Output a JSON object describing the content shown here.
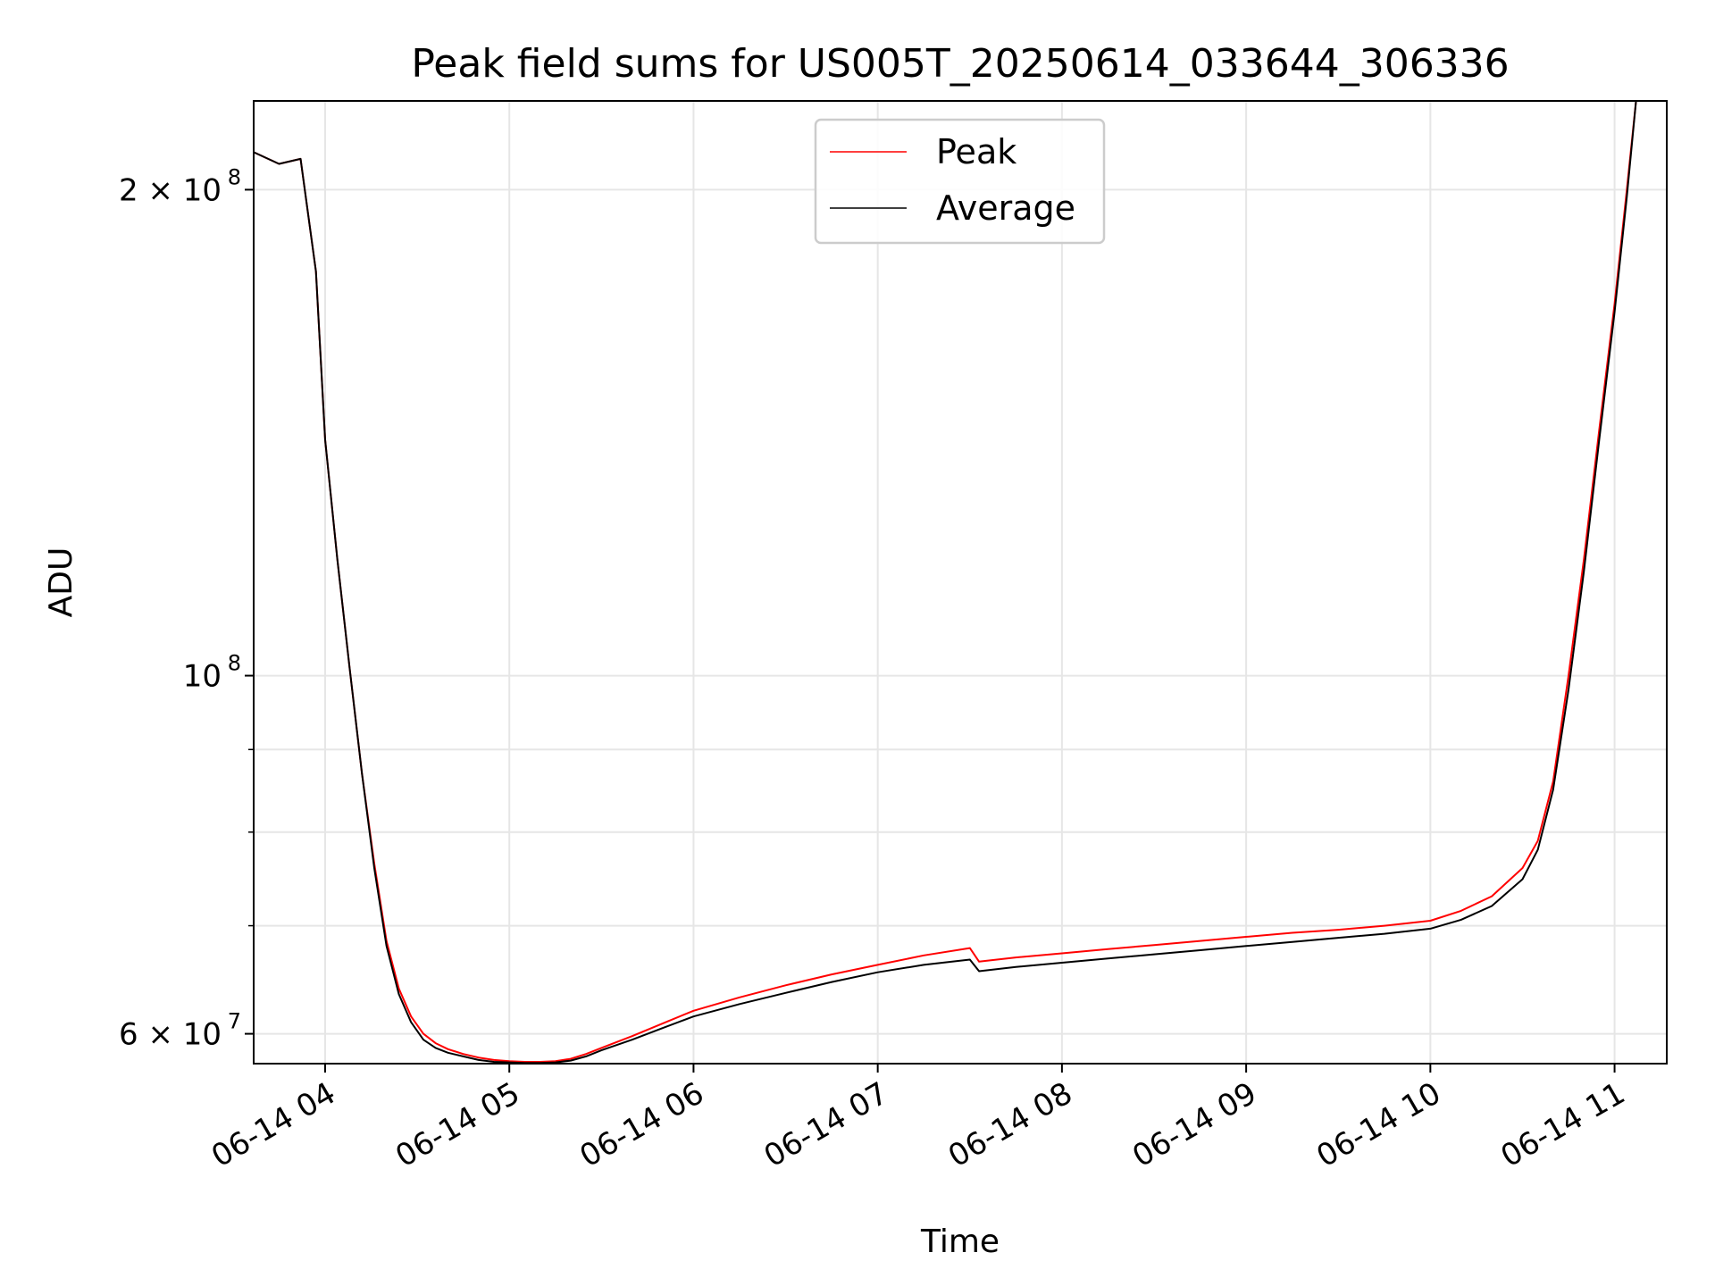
{
  "chart_data": {
    "type": "line",
    "title": "Peak field sums for US005T_20250614_033644_306336",
    "xlabel": "Time",
    "ylabel": "ADU",
    "x_ticks": [
      "06-14 04",
      "06-14 05",
      "06-14 06",
      "06-14 07",
      "06-14 08",
      "06-14 09",
      "06-14 10",
      "06-14 11"
    ],
    "y_scale": "log",
    "y_ticks": [
      {
        "value": 60000000,
        "label_base": "6 × 10",
        "label_exp": "7"
      },
      {
        "value": 100000000,
        "label_base": "10",
        "label_exp": "8"
      },
      {
        "value": 200000000,
        "label_base": "2 × 10",
        "label_exp": "8"
      }
    ],
    "ylim": [
      57500000,
      227000000
    ],
    "xlim": [
      "06-14 03:36:44",
      "06-14 11:17:00"
    ],
    "grid": true,
    "legend_position": "upper center",
    "series": [
      {
        "name": "Peak",
        "color": "#ff0000",
        "x": [
          "03:36:44",
          "03:45",
          "03:52",
          "03:57",
          "04:00",
          "04:04",
          "04:08",
          "04:12",
          "04:16",
          "04:20",
          "04:24",
          "04:28",
          "04:32",
          "04:36",
          "04:40",
          "04:45",
          "04:50",
          "04:55",
          "05:00",
          "05:05",
          "05:10",
          "05:15",
          "05:20",
          "05:25",
          "05:30",
          "05:40",
          "05:50",
          "06:00",
          "06:15",
          "06:30",
          "06:45",
          "07:00",
          "07:15",
          "07:30",
          "07:33",
          "07:45",
          "08:00",
          "08:15",
          "08:30",
          "08:45",
          "09:00",
          "09:15",
          "09:30",
          "09:45",
          "10:00",
          "10:10",
          "10:20",
          "10:30",
          "10:35",
          "10:40",
          "10:45",
          "10:50",
          "10:55",
          "11:00",
          "11:04",
          "11:07",
          "11:10",
          "11:17"
        ],
        "y": [
          211000000,
          207500000,
          209000000,
          178000000,
          140000000,
          118000000,
          101000000,
          87000000,
          76500000,
          68500000,
          64000000,
          61500000,
          60000000,
          59200000,
          58700000,
          58300000,
          58000000,
          57800000,
          57700000,
          57650000,
          57650000,
          57700000,
          57900000,
          58300000,
          58800000,
          59800000,
          60900000,
          62000000,
          63200000,
          64300000,
          65300000,
          66200000,
          67100000,
          67800000,
          66500000,
          66900000,
          67300000,
          67700000,
          68100000,
          68500000,
          68900000,
          69300000,
          69600000,
          70000000,
          70500000,
          71500000,
          73000000,
          76000000,
          79000000,
          86000000,
          100000000,
          118000000,
          142000000,
          170000000,
          200000000,
          227000000,
          227000000,
          227000000
        ]
      },
      {
        "name": "Average",
        "color": "#000000",
        "x": [
          "03:36:44",
          "03:45",
          "03:52",
          "03:57",
          "04:00",
          "04:04",
          "04:08",
          "04:12",
          "04:16",
          "04:20",
          "04:24",
          "04:28",
          "04:32",
          "04:36",
          "04:40",
          "04:45",
          "04:50",
          "04:55",
          "05:00",
          "05:05",
          "05:10",
          "05:15",
          "05:20",
          "05:25",
          "05:30",
          "05:40",
          "05:50",
          "06:00",
          "06:15",
          "06:30",
          "06:45",
          "07:00",
          "07:15",
          "07:30",
          "07:33",
          "07:45",
          "08:00",
          "08:15",
          "08:30",
          "08:45",
          "09:00",
          "09:15",
          "09:30",
          "09:45",
          "10:00",
          "10:10",
          "10:20",
          "10:30",
          "10:35",
          "10:40",
          "10:45",
          "10:50",
          "10:55",
          "11:00",
          "11:04",
          "11:07",
          "11:10",
          "11:17"
        ],
        "y": [
          211000000,
          207500000,
          209000000,
          178000000,
          140000000,
          118000000,
          101000000,
          87000000,
          76000000,
          68000000,
          63500000,
          61000000,
          59500000,
          58800000,
          58400000,
          58100000,
          57800000,
          57650000,
          57600000,
          57550000,
          57550000,
          57600000,
          57750000,
          58100000,
          58600000,
          59500000,
          60500000,
          61500000,
          62600000,
          63600000,
          64600000,
          65500000,
          66200000,
          66700000,
          65600000,
          66000000,
          66400000,
          66800000,
          67200000,
          67600000,
          68000000,
          68400000,
          68800000,
          69200000,
          69700000,
          70600000,
          72000000,
          74800000,
          78000000,
          85000000,
          98000000,
          116000000,
          140000000,
          168000000,
          198000000,
          227000000,
          227000000,
          227000000
        ]
      }
    ]
  }
}
